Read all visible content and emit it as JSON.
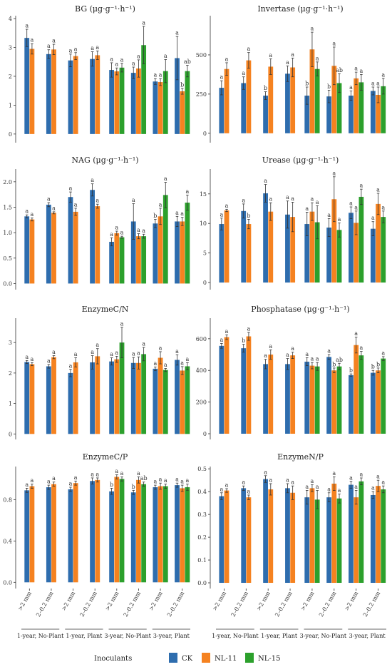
{
  "colors": {
    "CK": "#2E6DAE",
    "NL-11": "#F58220",
    "NL-15": "#2CA02C"
  },
  "legend": {
    "title": "Inoculants",
    "items": [
      "CK",
      "NL-11",
      "NL-15"
    ]
  },
  "x_tick_labels": [
    ">2 mm",
    "2–0.2 mm",
    ">2 mm",
    "2–0.2 mm",
    ">2 mm",
    "2–0.2 mm",
    ">2 mm",
    "2–0.2 mm"
  ],
  "group_labels": [
    "1-year, No-Plant",
    "1-year, Plant",
    "3-year, No-Plant",
    "3-year, Plant"
  ],
  "chart_data": [
    {
      "type": "bar",
      "title": "BG (μg·g⁻¹·h⁻¹)",
      "ylim": [
        -0.3,
        4.1
      ],
      "yticks": [
        0,
        1,
        2,
        3,
        4
      ],
      "tick_labels": [
        "0",
        "1",
        "2",
        "3",
        "4"
      ],
      "categories": [
        ">2 mm",
        "2–0.2 mm",
        ">2 mm",
        "2–0.2 mm",
        ">2 mm",
        "2–0.2 mm",
        ">2 mm",
        "2–0.2 mm"
      ],
      "series": [
        {
          "name": "CK",
          "values": [
            3.33,
            2.77,
            2.55,
            2.6,
            2.22,
            2.12,
            1.82,
            2.63
          ],
          "errors": [
            0.3,
            0.15,
            0.22,
            0.25,
            0.25,
            0.2,
            0.1,
            0.75
          ],
          "sig": [
            "a",
            "a",
            "a",
            "a",
            "a",
            "a",
            "a",
            "a"
          ]
        },
        {
          "name": "NL-11",
          "values": [
            2.95,
            2.93,
            2.7,
            2.73,
            2.17,
            2.27,
            1.8,
            1.48
          ],
          "errors": [
            0.18,
            0.18,
            0.12,
            0.15,
            0.12,
            0.3,
            0.12,
            0.1
          ],
          "sig": [
            "a",
            "a",
            "a",
            "a",
            "a",
            "a",
            "a",
            "b"
          ]
        },
        {
          "name": "NL-15",
          "values": [
            null,
            null,
            null,
            null,
            2.3,
            3.08,
            2.18,
            2.18
          ],
          "errors": [
            null,
            null,
            null,
            null,
            0.15,
            0.65,
            0.4,
            0.2
          ],
          "sig": [
            "",
            "",
            "",
            "",
            "a",
            "a",
            "a",
            "ab"
          ]
        }
      ]
    },
    {
      "type": "bar",
      "title": "Invertase (μg·g⁻¹·h⁻¹)",
      "ylim": [
        -60,
        750
      ],
      "yticks": [
        0,
        250,
        500
      ],
      "tick_labels": [
        "0",
        "250",
        "500"
      ],
      "categories": [
        ">2 mm",
        "2–0.2 mm",
        ">2 mm",
        "2–0.2 mm",
        ">2 mm",
        "2–0.2 mm",
        ">2 mm",
        "2–0.2 mm"
      ],
      "series": [
        {
          "name": "CK",
          "values": [
            290,
            320,
            240,
            380,
            240,
            235,
            240,
            270
          ],
          "errors": [
            45,
            40,
            25,
            50,
            55,
            40,
            30,
            25
          ],
          "sig": [
            "a",
            "a",
            "b",
            "a",
            "b",
            "b",
            "a",
            "a"
          ]
        },
        {
          "name": "NL-11",
          "values": [
            410,
            465,
            425,
            420,
            535,
            430,
            350,
            245
          ],
          "errors": [
            40,
            50,
            50,
            60,
            110,
            120,
            40,
            50
          ],
          "sig": [
            "a",
            "a",
            "a",
            "a",
            "a",
            "a",
            "a",
            "a"
          ]
        },
        {
          "name": "NL-15",
          "values": [
            null,
            null,
            null,
            null,
            410,
            320,
            325,
            300
          ],
          "errors": [
            null,
            null,
            null,
            null,
            45,
            60,
            50,
            50
          ],
          "sig": [
            "",
            "",
            "",
            "",
            "a",
            "ab",
            "a",
            "a"
          ]
        }
      ]
    },
    {
      "type": "bar",
      "title": "NAG (μg·g⁻¹·h⁻¹)",
      "ylim": [
        -0.12,
        2.25
      ],
      "yticks": [
        0,
        0.5,
        1,
        1.5,
        2
      ],
      "tick_labels": [
        "0.0",
        "0.5",
        "1.0",
        "1.5",
        "2.0"
      ],
      "categories": [
        ">2 mm",
        "2–0.2 mm",
        ">2 mm",
        "2–0.2 mm",
        ">2 mm",
        "2–0.2 mm",
        ">2 mm",
        "2–0.2 mm"
      ],
      "series": [
        {
          "name": "CK",
          "values": [
            1.32,
            1.55,
            1.7,
            1.84,
            0.82,
            1.22,
            1.18,
            1.22
          ],
          "errors": [
            0.03,
            0.04,
            0.1,
            0.12,
            0.08,
            0.35,
            0.08,
            0.1
          ],
          "sig": [
            "a",
            "a",
            "a",
            "a",
            "a",
            "a",
            "b",
            "a"
          ]
        },
        {
          "name": "NL-11",
          "values": [
            1.26,
            1.39,
            1.41,
            1.52,
            0.99,
            0.93,
            1.32,
            1.22
          ],
          "errors": [
            0.03,
            0.02,
            0.07,
            0.04,
            0.04,
            0.05,
            0.16,
            0.08
          ],
          "sig": [
            "a",
            "a",
            "a",
            "a",
            "a",
            "a",
            "a",
            "a"
          ]
        },
        {
          "name": "NL-15",
          "values": [
            null,
            null,
            null,
            null,
            0.91,
            0.93,
            1.74,
            1.59
          ],
          "errors": [
            null,
            null,
            null,
            null,
            0.02,
            0.04,
            0.25,
            0.15
          ],
          "sig": [
            "",
            "",
            "",
            "",
            "a",
            "a",
            "a",
            "a"
          ]
        }
      ]
    },
    {
      "type": "bar",
      "title": "Urease (μg·g⁻¹·h⁻¹)",
      "ylim": [
        -1.2,
        19.2
      ],
      "yticks": [
        0,
        5,
        10,
        15
      ],
      "tick_labels": [
        "0",
        "5",
        "10",
        "15"
      ],
      "categories": [
        ">2 mm",
        "2–0.2 mm",
        ">2 mm",
        "2–0.2 mm",
        ">2 mm",
        "2–0.2 mm",
        ">2 mm",
        "2–0.2 mm"
      ],
      "series": [
        {
          "name": "CK",
          "values": [
            9.9,
            12.1,
            15.1,
            11.5,
            9.9,
            9.3,
            11.8,
            9.1
          ],
          "errors": [
            1.0,
            1.2,
            1.5,
            2.3,
            2.0,
            1.5,
            1.0,
            1.2
          ],
          "sig": [
            "a",
            "a",
            "a",
            "a",
            "a",
            "a",
            "a",
            "a"
          ]
        },
        {
          "name": "NL-11",
          "values": [
            12.2,
            9.9,
            12.0,
            11.1,
            12.0,
            14.1,
            10.1,
            13.3
          ],
          "errors": [
            0.2,
            0.8,
            1.5,
            2.5,
            1.5,
            3.8,
            2.0,
            1.8
          ],
          "sig": [
            "a",
            "b",
            "a",
            "a",
            "a",
            "a",
            "a",
            "a"
          ]
        },
        {
          "name": "NL-15",
          "values": [
            null,
            null,
            null,
            null,
            10.2,
            8.9,
            14.5,
            11.1
          ],
          "errors": [
            null,
            null,
            null,
            null,
            2.8,
            1.2,
            1.3,
            1.0
          ],
          "sig": [
            "",
            "",
            "",
            "",
            "a",
            "a",
            "a",
            "a"
          ]
        }
      ]
    },
    {
      "type": "bar",
      "title": "EnzymeC/N",
      "ylim": [
        -0.18,
        3.8
      ],
      "yticks": [
        0,
        1,
        2,
        3
      ],
      "tick_labels": [
        "0",
        "1",
        "2",
        "3"
      ],
      "categories": [
        ">2 mm",
        "2–0.2 mm",
        ">2 mm",
        "2–0.2 mm",
        ">2 mm",
        "2–0.2 mm",
        ">2 mm",
        "2–0.2 mm"
      ],
      "series": [
        {
          "name": "CK",
          "values": [
            2.36,
            2.22,
            2.0,
            2.35,
            2.38,
            2.33,
            2.14,
            2.43
          ],
          "errors": [
            0.05,
            0.06,
            0.12,
            0.22,
            0.12,
            0.18,
            0.06,
            0.17
          ],
          "sig": [
            "a",
            "a",
            "a",
            "a",
            "a",
            "a",
            "a",
            "a"
          ]
        },
        {
          "name": "NL-11",
          "values": [
            2.29,
            2.52,
            2.35,
            2.55,
            2.45,
            2.33,
            2.5,
            2.08
          ],
          "errors": [
            0.05,
            0.05,
            0.15,
            0.25,
            0.1,
            0.2,
            0.2,
            0.13
          ],
          "sig": [
            "a",
            "a",
            "a",
            "a",
            "a",
            "a",
            "a",
            "a"
          ]
        },
        {
          "name": "NL-15",
          "values": [
            null,
            null,
            null,
            null,
            3.0,
            2.62,
            2.1,
            2.22
          ],
          "errors": [
            null,
            null,
            null,
            null,
            0.5,
            0.22,
            0.05,
            0.12
          ],
          "sig": [
            "",
            "",
            "",
            "",
            "a",
            "a",
            "a",
            "a"
          ]
        }
      ]
    },
    {
      "type": "bar",
      "title": "Phosphatase (μg·g⁻¹·h⁻¹)",
      "ylim": [
        -36,
        730
      ],
      "yticks": [
        0,
        200,
        400,
        600
      ],
      "tick_labels": [
        "0",
        "200",
        "400",
        "600"
      ],
      "categories": [
        ">2 mm",
        "2–0.2 mm",
        ">2 mm",
        "2–0.2 mm",
        ">2 mm",
        "2–0.2 mm",
        ">2 mm",
        "2–0.2 mm"
      ],
      "series": [
        {
          "name": "CK",
          "values": [
            555,
            540,
            440,
            440,
            455,
            485,
            370,
            385
          ],
          "errors": [
            15,
            25,
            30,
            35,
            25,
            15,
            8,
            15
          ],
          "sig": [
            "a",
            "b",
            "a",
            "a",
            "a",
            "a",
            "b",
            "b"
          ]
        },
        {
          "name": "NL-11",
          "values": [
            610,
            615,
            500,
            495,
            430,
            400,
            560,
            400
          ],
          "errors": [
            15,
            25,
            30,
            20,
            20,
            15,
            50,
            15
          ],
          "sig": [
            "a",
            "a",
            "a",
            "a",
            "a",
            "b",
            "a",
            "b"
          ]
        },
        {
          "name": "NL-15",
          "values": [
            null,
            null,
            null,
            null,
            425,
            425,
            495,
            475
          ],
          "errors": [
            null,
            null,
            null,
            null,
            25,
            20,
            25,
            12
          ],
          "sig": [
            "",
            "",
            "",
            "",
            "a",
            "ab",
            "a",
            "a"
          ]
        }
      ]
    },
    {
      "type": "bar",
      "title": "EnzymeC/P",
      "ylim": [
        -0.06,
        1.12
      ],
      "yticks": [
        0,
        0.4,
        0.8
      ],
      "tick_labels": [
        "0.0",
        "0.4",
        "0.8"
      ],
      "categories": [
        ">2 mm",
        "2–0.2 mm",
        ">2 mm",
        "2–0.2 mm",
        ">2 mm",
        "2–0.2 mm",
        ">2 mm",
        "2–0.2 mm"
      ],
      "series": [
        {
          "name": "CK",
          "values": [
            0.89,
            0.92,
            0.9,
            0.98,
            0.88,
            0.87,
            0.92,
            0.94
          ],
          "errors": [
            0.02,
            0.02,
            0.02,
            0.03,
            0.03,
            0.02,
            0.02,
            0.02
          ],
          "sig": [
            "a",
            "a",
            "a",
            "a",
            "b",
            "b",
            "a",
            "a"
          ]
        },
        {
          "name": "NL-11",
          "values": [
            0.93,
            0.95,
            0.96,
            0.99,
            1.02,
            0.99,
            0.93,
            0.91
          ],
          "errors": [
            0.02,
            0.02,
            0.02,
            0.02,
            0.02,
            0.03,
            0.03,
            0.03
          ],
          "sig": [
            "a",
            "a",
            "a",
            "a",
            "a",
            "a",
            "a",
            "a"
          ]
        },
        {
          "name": "NL-15",
          "values": [
            null,
            null,
            null,
            null,
            1.0,
            0.95,
            0.93,
            0.92
          ],
          "errors": [
            null,
            null,
            null,
            null,
            0.02,
            0.02,
            0.02,
            0.03
          ],
          "sig": [
            "",
            "",
            "",
            "",
            "a",
            "ab",
            "a",
            "a"
          ]
        }
      ]
    },
    {
      "type": "bar",
      "title": "EnzymeN/P",
      "ylim": [
        -0.025,
        0.51
      ],
      "yticks": [
        0,
        0.1,
        0.2,
        0.3,
        0.4,
        0.5
      ],
      "tick_labels": [
        "0.0",
        "0.1",
        "0.2",
        "0.3",
        "0.4",
        "0.5"
      ],
      "categories": [
        ">2 mm",
        "2–0.2 mm",
        ">2 mm",
        "2–0.2 mm",
        ">2 mm",
        "2–0.2 mm",
        ">2 mm",
        "2–0.2 mm"
      ],
      "series": [
        {
          "name": "CK",
          "values": [
            0.38,
            0.415,
            0.455,
            0.415,
            0.375,
            0.375,
            0.43,
            0.385
          ],
          "errors": [
            0.015,
            0.01,
            0.015,
            0.02,
            0.03,
            0.02,
            0.015,
            0.015
          ],
          "sig": [
            "a",
            "a",
            "a",
            "a",
            "a",
            "a",
            "a",
            "a"
          ]
        },
        {
          "name": "NL-11",
          "values": [
            0.405,
            0.375,
            0.41,
            0.395,
            0.415,
            0.435,
            0.375,
            0.425
          ],
          "errors": [
            0.008,
            0.01,
            0.025,
            0.03,
            0.015,
            0.03,
            0.03,
            0.025
          ],
          "sig": [
            "a",
            "a",
            "a",
            "a",
            "a",
            "a",
            "a",
            "a"
          ]
        },
        {
          "name": "NL-15",
          "values": [
            null,
            null,
            null,
            null,
            0.365,
            0.37,
            0.445,
            0.41
          ],
          "errors": [
            null,
            null,
            null,
            null,
            0.04,
            0.02,
            0.015,
            0.015
          ],
          "sig": [
            "",
            "",
            "",
            "",
            "a",
            "a",
            "a",
            "a"
          ]
        }
      ]
    }
  ]
}
